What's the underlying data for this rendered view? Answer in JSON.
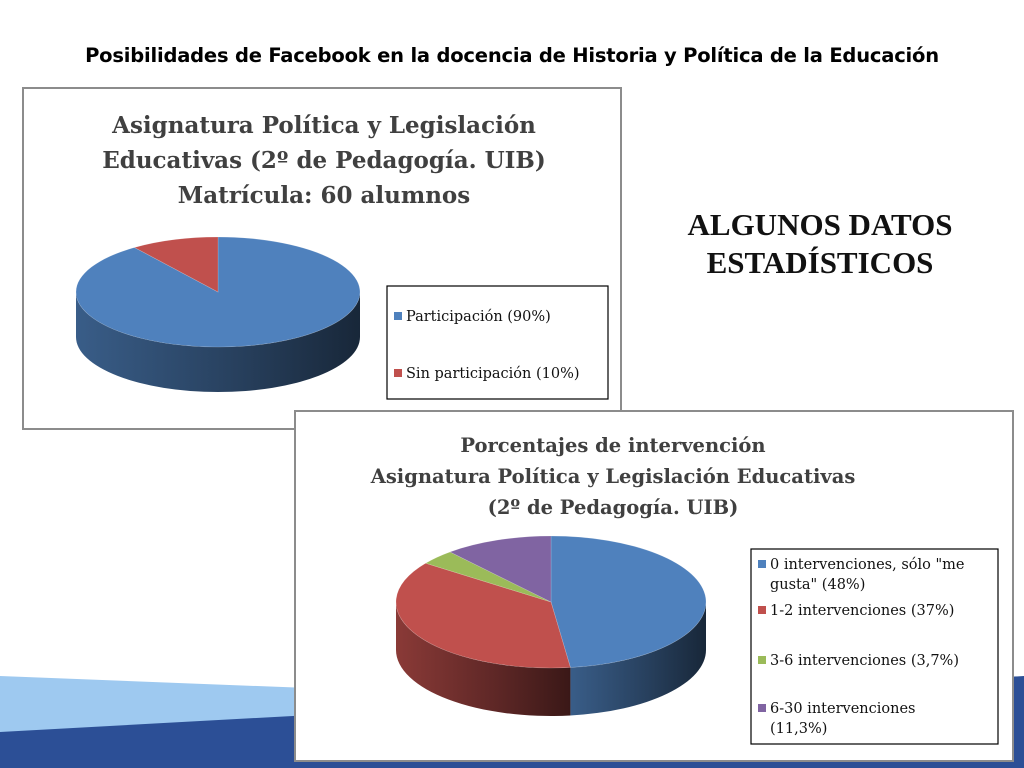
{
  "slide": {
    "title": "Posibilidades de Facebook en la docencia de Historia y Política de la Educación",
    "heading_lines": [
      "ALGUNOS DATOS",
      "ESTADÍSTICOS"
    ]
  },
  "colors": {
    "blue": "#4f81bd",
    "red": "#c0504d",
    "green": "#9bbb59",
    "purple": "#8064a2",
    "decor_dark": "#2c4f96",
    "decor_light": "#9ec9f0"
  },
  "chart_data": [
    {
      "type": "pie",
      "style": "3d",
      "title_lines": [
        "Asignatura Política y Legislación",
        "Educativas (2º de Pedagogía. UIB)",
        "Matrícula: 60 alumnos"
      ],
      "categories": [
        "Participación (90%)",
        "Sin participación (10%)"
      ],
      "values": [
        90,
        10
      ],
      "colors": [
        "#4f81bd",
        "#c0504d"
      ],
      "legend_position": "right"
    },
    {
      "type": "pie",
      "style": "3d",
      "title_lines": [
        "Porcentajes de intervención",
        "Asignatura Política y Legislación Educativas",
        "(2º de Pedagogía. UIB)"
      ],
      "categories": [
        "0 intervenciones, sólo \"me gusta\" (48%)",
        "1-2 intervenciones (37%)",
        "3-6  intervenciones (3,7%)",
        "6-30 intervenciones (11,3%)"
      ],
      "legend_lines": [
        [
          "0 intervenciones, sólo \"me",
          "gusta\" (48%)"
        ],
        [
          "1-2 intervenciones (37%)"
        ],
        [
          "3-6  intervenciones (3,7%)"
        ],
        [
          "6-30 intervenciones",
          "(11,3%)"
        ]
      ],
      "values": [
        48,
        37,
        3.7,
        11.3
      ],
      "colors": [
        "#4f81bd",
        "#c0504d",
        "#9bbb59",
        "#8064a2"
      ],
      "legend_position": "right"
    }
  ]
}
